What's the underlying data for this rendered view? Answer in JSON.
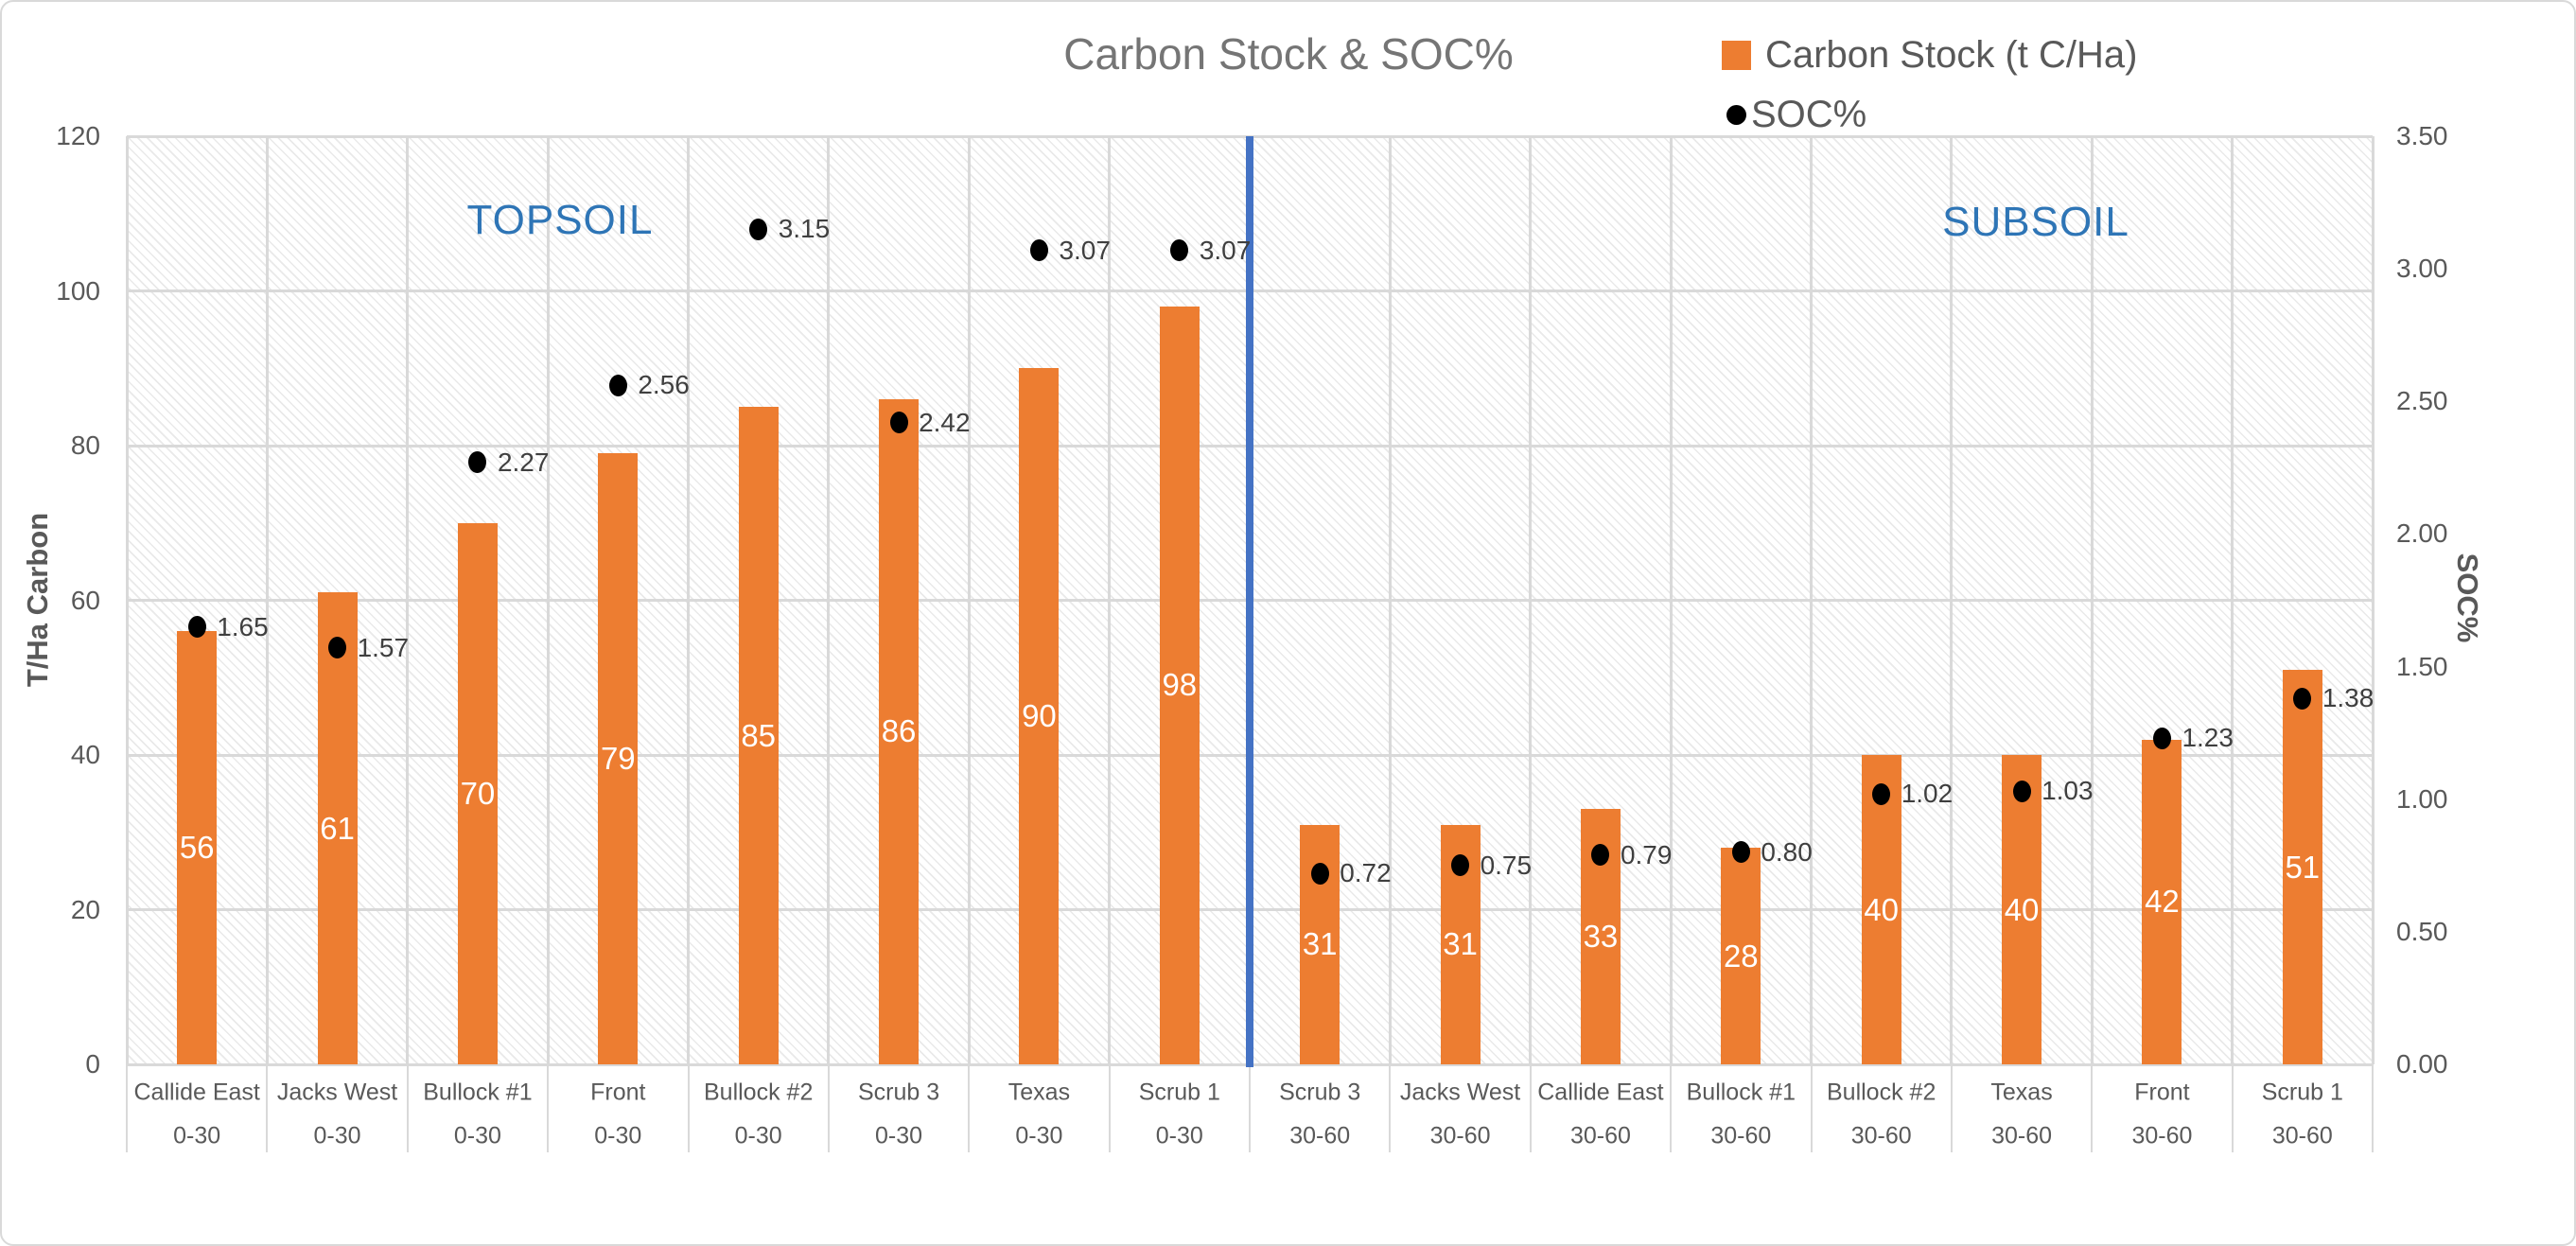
{
  "chart_data": {
    "type": "bar",
    "title": "Carbon Stock & SOC%",
    "categories": [
      {
        "site": "Callide East",
        "depth": "0-30"
      },
      {
        "site": "Jacks West",
        "depth": "0-30"
      },
      {
        "site": "Bullock #1",
        "depth": "0-30"
      },
      {
        "site": "Front",
        "depth": "0-30"
      },
      {
        "site": "Bullock #2",
        "depth": "0-30"
      },
      {
        "site": "Scrub 3",
        "depth": "0-30"
      },
      {
        "site": "Texas",
        "depth": "0-30"
      },
      {
        "site": "Scrub 1",
        "depth": "0-30"
      },
      {
        "site": "Scrub 3",
        "depth": "30-60"
      },
      {
        "site": "Jacks West",
        "depth": "30-60"
      },
      {
        "site": "Callide East",
        "depth": "30-60"
      },
      {
        "site": "Bullock #1",
        "depth": "30-60"
      },
      {
        "site": "Bullock #2",
        "depth": "30-60"
      },
      {
        "site": "Texas",
        "depth": "30-60"
      },
      {
        "site": "Front",
        "depth": "30-60"
      },
      {
        "site": "Scrub 1",
        "depth": "30-60"
      }
    ],
    "series": [
      {
        "name": "Carbon Stock (t C/Ha)",
        "type": "bar",
        "axis": "left",
        "color": "#ED7D31",
        "values": [
          56,
          61,
          70,
          79,
          85,
          86,
          90,
          98,
          31,
          31,
          33,
          28,
          40,
          40,
          42,
          51
        ]
      },
      {
        "name": "SOC%",
        "type": "scatter",
        "axis": "right",
        "color": "#000000",
        "values": [
          1.65,
          1.57,
          2.27,
          2.56,
          3.15,
          2.42,
          3.07,
          3.07,
          0.72,
          0.75,
          0.79,
          0.8,
          1.02,
          1.03,
          1.23,
          1.38
        ]
      }
    ],
    "left_axis": {
      "title": "T/Ha Carbon",
      "min": 0,
      "max": 120,
      "step": 20,
      "ticks": [
        "0",
        "20",
        "40",
        "60",
        "80",
        "100",
        "120"
      ]
    },
    "right_axis": {
      "title": "SOC%",
      "min": 0,
      "max": 3.5,
      "step": 0.5,
      "ticks": [
        "0.00",
        "0.50",
        "1.00",
        "1.50",
        "2.00",
        "2.50",
        "3.00",
        "3.50"
      ]
    },
    "zones": [
      {
        "label": "TOPSOIL",
        "color": "#2E75B6"
      },
      {
        "label": "SUBSOIL",
        "color": "#2E75B6"
      }
    ],
    "separator_after_index": 7,
    "separator_color": "#4472C4",
    "grid": true,
    "grid_color": "#D9D9D9",
    "legend_position": "top-right",
    "background_pattern": "light-downward-diagonal-hatch"
  }
}
